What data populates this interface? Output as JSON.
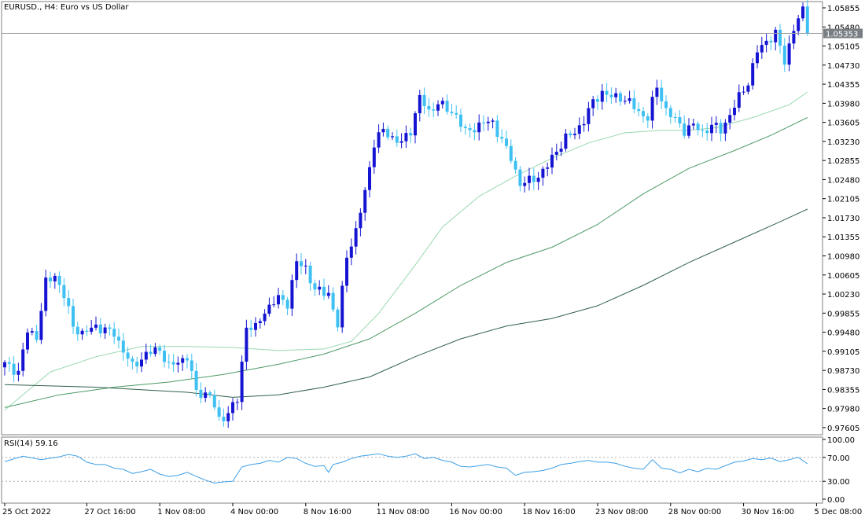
{
  "header": {
    "symbol_title": "EURUSD., H4:  Euro vs US Dollar"
  },
  "indicator": {
    "label": "RSI(14) 59.16"
  },
  "current_price_label": "1.05353",
  "colors": {
    "bull": "#1414d2",
    "bear": "#3ec1f2",
    "ma_fast": "#99d9b0",
    "ma_mid": "#4c9a64",
    "ma_slow": "#30604a",
    "rsi_line": "#3ea0e8",
    "frame": "#808080",
    "price_line": "#9aa0a4",
    "price_label_bg": "#787e84"
  },
  "chart_data": [
    {
      "type": "candlestick",
      "title": "",
      "series_labels": [
        "EURUSD., H4:  Euro vs US Dollar"
      ],
      "ylim": [
        0.974,
        1.06
      ],
      "y_ticks": [
        "1.05855",
        "1.05480",
        "1.05105",
        "1.04730",
        "1.04355",
        "1.03980",
        "1.03605",
        "1.03230",
        "1.02855",
        "1.02480",
        "1.02105",
        "1.01730",
        "1.01355",
        "1.00980",
        "1.00605",
        "1.00230",
        "0.99855",
        "0.99480",
        "0.99105",
        "0.98730",
        "0.98355",
        "0.97980",
        "0.97605"
      ],
      "x_ticks": [
        {
          "i": 0,
          "label": "25 Oct 2022"
        },
        {
          "i": 18,
          "label": "27 Oct 16:00"
        },
        {
          "i": 34,
          "label": "1 Nov 08:00"
        },
        {
          "i": 50,
          "label": "4 Nov 00:00"
        },
        {
          "i": 66,
          "label": "8 Nov 16:00"
        },
        {
          "i": 82,
          "label": "11 Nov 08:00"
        },
        {
          "i": 98,
          "label": "16 Nov 00:00"
        },
        {
          "i": 114,
          "label": "18 Nov 16:00"
        },
        {
          "i": 130,
          "label": "23 Nov 08:00"
        },
        {
          "i": 146,
          "label": "28 Nov 00:00"
        },
        {
          "i": 162,
          "label": "30 Nov 16:00"
        },
        {
          "i": 178,
          "label": "5 Dec 08:00"
        }
      ],
      "current_price": 1.05353,
      "close_path": [
        [
          0,
          0.9885
        ],
        [
          3,
          0.987
        ],
        [
          5,
          0.995
        ],
        [
          7,
          0.994
        ],
        [
          9,
          1.0045
        ],
        [
          11,
          1.006
        ],
        [
          13,
          1.002
        ],
        [
          15,
          0.996
        ],
        [
          17,
          0.9945
        ],
        [
          20,
          0.996
        ],
        [
          24,
          0.9945
        ],
        [
          28,
          0.988
        ],
        [
          31,
          0.9905
        ],
        [
          34,
          0.9915
        ],
        [
          36,
          0.988
        ],
        [
          40,
          0.99
        ],
        [
          42,
          0.983
        ],
        [
          45,
          0.9825
        ],
        [
          47,
          0.9775
        ],
        [
          49,
          0.979
        ],
        [
          51,
          0.9815
        ],
        [
          53,
          0.996
        ],
        [
          55,
          0.9955
        ],
        [
          57,
          0.999
        ],
        [
          60,
          1.0015
        ],
        [
          62,
          1.0005
        ],
        [
          64,
          1.0085
        ],
        [
          66,
          1.0075
        ],
        [
          68,
          1.003
        ],
        [
          71,
          1.0025
        ],
        [
          73,
          0.996
        ],
        [
          75,
          1.01
        ],
        [
          77,
          1.0145
        ],
        [
          79,
          1.0225
        ],
        [
          81,
          1.032
        ],
        [
          83,
          1.0345
        ],
        [
          85,
          1.033
        ],
        [
          87,
          1.032
        ],
        [
          89,
          1.0345
        ],
        [
          91,
          1.041
        ],
        [
          93,
          1.038
        ],
        [
          95,
          1.04
        ],
        [
          97,
          1.0385
        ],
        [
          99,
          1.0375
        ],
        [
          101,
          1.034
        ],
        [
          103,
          1.035
        ],
        [
          105,
          1.036
        ],
        [
          107,
          1.036
        ],
        [
          109,
          1.0325
        ],
        [
          111,
          1.029
        ],
        [
          113,
          1.024
        ],
        [
          115,
          1.0245
        ],
        [
          117,
          1.0255
        ],
        [
          119,
          1.0275
        ],
        [
          121,
          1.0305
        ],
        [
          123,
          1.033
        ],
        [
          125,
          1.034
        ],
        [
          127,
          1.0365
        ],
        [
          129,
          1.04
        ],
        [
          131,
          1.042
        ],
        [
          133,
          1.041
        ],
        [
          135,
          1.041
        ],
        [
          137,
          1.04
        ],
        [
          139,
          1.038
        ],
        [
          141,
          1.037
        ],
        [
          143,
          1.043
        ],
        [
          145,
          1.0385
        ],
        [
          147,
          1.0365
        ],
        [
          149,
          1.0345
        ],
        [
          151,
          1.0355
        ],
        [
          153,
          1.034
        ],
        [
          155,
          1.0355
        ],
        [
          157,
          1.0345
        ],
        [
          159,
          1.0375
        ],
        [
          161,
          1.041
        ],
        [
          163,
          1.044
        ],
        [
          165,
          1.05
        ],
        [
          167,
          1.052
        ],
        [
          169,
          1.0535
        ],
        [
          171,
          1.048
        ],
        [
          173,
          1.0545
        ],
        [
          175,
          1.058
        ],
        [
          176,
          1.05353
        ]
      ],
      "series": [
        {
          "name": "",
          "kind": "sma",
          "values": [
            [
              0,
              0.9795
            ],
            [
              10,
              0.987
            ],
            [
              20,
              0.99
            ],
            [
              30,
              0.992
            ],
            [
              40,
              0.992
            ],
            [
              50,
              0.9918
            ],
            [
              60,
              0.9912
            ],
            [
              70,
              0.9915
            ],
            [
              76,
              0.993
            ],
            [
              82,
              0.9985
            ],
            [
              90,
              1.008
            ],
            [
              96,
              1.0155
            ],
            [
              104,
              1.0215
            ],
            [
              112,
              1.0255
            ],
            [
              120,
              1.029
            ],
            [
              128,
              1.032
            ],
            [
              136,
              1.034
            ],
            [
              144,
              1.0345
            ],
            [
              150,
              1.0345
            ],
            [
              156,
              1.035
            ],
            [
              164,
              1.037
            ],
            [
              172,
              1.0395
            ],
            [
              176,
              1.042
            ]
          ]
        },
        {
          "name": "",
          "kind": "sma",
          "values": [
            [
              0,
              0.98
            ],
            [
              12,
              0.9825
            ],
            [
              24,
              0.984
            ],
            [
              36,
              0.985
            ],
            [
              48,
              0.9865
            ],
            [
              60,
              0.9885
            ],
            [
              70,
              0.9905
            ],
            [
              80,
              0.9935
            ],
            [
              90,
              0.9985
            ],
            [
              100,
              1.004
            ],
            [
              110,
              1.0085
            ],
            [
              120,
              1.0115
            ],
            [
              130,
              1.016
            ],
            [
              140,
              1.022
            ],
            [
              150,
              1.027
            ],
            [
              160,
              1.0305
            ],
            [
              168,
              1.0335
            ],
            [
              176,
              1.037
            ]
          ]
        },
        {
          "name": "",
          "kind": "sma",
          "values": [
            [
              0,
              0.9845
            ],
            [
              20,
              0.984
            ],
            [
              30,
              0.9835
            ],
            [
              40,
              0.983
            ],
            [
              50,
              0.982
            ],
            [
              60,
              0.9825
            ],
            [
              70,
              0.984
            ],
            [
              80,
              0.986
            ],
            [
              90,
              0.99
            ],
            [
              100,
              0.9935
            ],
            [
              110,
              0.996
            ],
            [
              120,
              0.9975
            ],
            [
              130,
              1.0
            ],
            [
              140,
              1.004
            ],
            [
              150,
              1.0085
            ],
            [
              160,
              1.0125
            ],
            [
              170,
              1.0165
            ],
            [
              176,
              1.019
            ]
          ]
        }
      ]
    },
    {
      "type": "line",
      "title": "",
      "series_labels": [
        "RSI(14) 59.16"
      ],
      "ylim": [
        0,
        100
      ],
      "y_ticks": [
        "100.00",
        "70.00",
        "30.00",
        "0.00"
      ],
      "levels": [
        70,
        30
      ],
      "series": [
        {
          "name": "",
          "values": [
            [
              0,
              63
            ],
            [
              4,
              72
            ],
            [
              8,
              66
            ],
            [
              12,
              71
            ],
            [
              14,
              75
            ],
            [
              16,
              72
            ],
            [
              18,
              62
            ],
            [
              20,
              58
            ],
            [
              22,
              58
            ],
            [
              24,
              52
            ],
            [
              26,
              50
            ],
            [
              28,
              43
            ],
            [
              30,
              46
            ],
            [
              32,
              50
            ],
            [
              34,
              42
            ],
            [
              36,
              38
            ],
            [
              38,
              40
            ],
            [
              40,
              45
            ],
            [
              42,
              38
            ],
            [
              44,
              32
            ],
            [
              46,
              27
            ],
            [
              48,
              29
            ],
            [
              50,
              30
            ],
            [
              52,
              54
            ],
            [
              54,
              58
            ],
            [
              56,
              60
            ],
            [
              58,
              65
            ],
            [
              60,
              62
            ],
            [
              62,
              70
            ],
            [
              64,
              68
            ],
            [
              66,
              60
            ],
            [
              68,
              55
            ],
            [
              70,
              56
            ],
            [
              71,
              45
            ],
            [
              72,
              58
            ],
            [
              74,
              62
            ],
            [
              76,
              68
            ],
            [
              78,
              72
            ],
            [
              80,
              74
            ],
            [
              82,
              76
            ],
            [
              84,
              72
            ],
            [
              86,
              70
            ],
            [
              88,
              72
            ],
            [
              90,
              76
            ],
            [
              92,
              68
            ],
            [
              94,
              70
            ],
            [
              96,
              65
            ],
            [
              98,
              62
            ],
            [
              100,
              55
            ],
            [
              102,
              54
            ],
            [
              104,
              56
            ],
            [
              106,
              58
            ],
            [
              108,
              54
            ],
            [
              110,
              52
            ],
            [
              112,
              40
            ],
            [
              114,
              45
            ],
            [
              116,
              46
            ],
            [
              118,
              48
            ],
            [
              120,
              52
            ],
            [
              122,
              58
            ],
            [
              124,
              60
            ],
            [
              126,
              63
            ],
            [
              128,
              65
            ],
            [
              130,
              62
            ],
            [
              132,
              62
            ],
            [
              134,
              60
            ],
            [
              136,
              55
            ],
            [
              138,
              52
            ],
            [
              140,
              50
            ],
            [
              142,
              66
            ],
            [
              144,
              52
            ],
            [
              146,
              50
            ],
            [
              148,
              44
            ],
            [
              150,
              50
            ],
            [
              152,
              46
            ],
            [
              154,
              52
            ],
            [
              156,
              50
            ],
            [
              158,
              56
            ],
            [
              160,
              62
            ],
            [
              162,
              64
            ],
            [
              164,
              68
            ],
            [
              166,
              66
            ],
            [
              168,
              69
            ],
            [
              170,
              63
            ],
            [
              172,
              66
            ],
            [
              174,
              70
            ],
            [
              176,
              59.16
            ]
          ]
        }
      ]
    }
  ]
}
